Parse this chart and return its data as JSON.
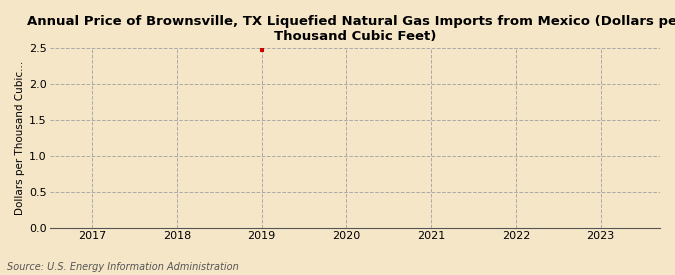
{
  "title": "Annual Price of Brownsville, TX Liquefied Natural Gas Imports from Mexico (Dollars per\nThousand Cubic Feet)",
  "ylabel": "Dollars per Thousand Cubic...",
  "source": "Source: U.S. Energy Information Administration",
  "background_color": "#f5e6c8",
  "plot_background_color": "#f5e6c8",
  "data_x": [
    2019
  ],
  "data_y": [
    2.476
  ],
  "marker_color": "#cc0000",
  "xlim": [
    2016.5,
    2023.7
  ],
  "ylim": [
    0.0,
    2.5
  ],
  "yticks": [
    0.0,
    0.5,
    1.0,
    1.5,
    2.0,
    2.5
  ],
  "xticks": [
    2017,
    2018,
    2019,
    2020,
    2021,
    2022,
    2023
  ],
  "grid_color": "#aaaaaa",
  "title_fontsize": 9.5,
  "ylabel_fontsize": 7.5,
  "tick_fontsize": 8,
  "source_fontsize": 7
}
